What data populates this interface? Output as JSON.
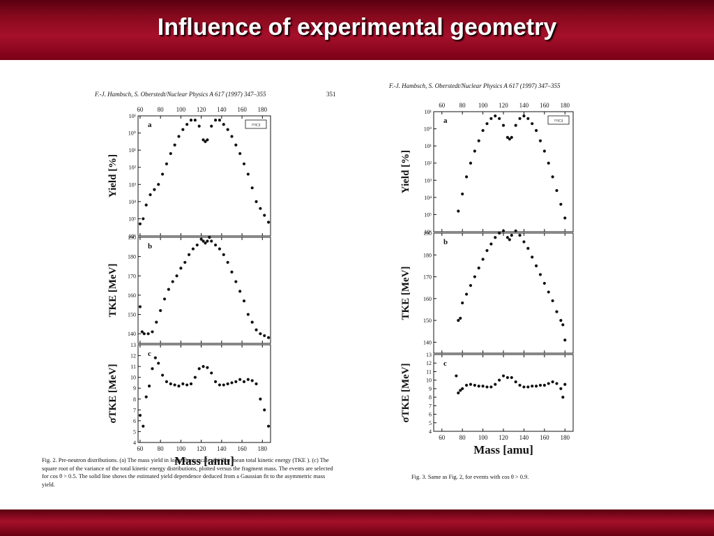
{
  "slide": {
    "title": "Influence of experimental geometry"
  },
  "figures": [
    {
      "header": "F.-J. Hambsch, S. Oberstedt/Nuclear Physics A 617 (1997) 347–355",
      "page": "351",
      "legend": "²⁵²Cf",
      "panel_labels": [
        "a",
        "b",
        "c"
      ],
      "ylabels": [
        "Yield [%]",
        "TKE [MeV]",
        "σTKE [MeV]"
      ],
      "xlabel": "Mass [amu]",
      "caption": "Fig. 2. Pre-neutron distributions. (a) The mass yield in logarithmic scale. (b) The mean total kinetic energy (TKE ). (c) The square root of the variance of the total kinetic energy distributions, plotted versus the fragment mass. The events are selected for cos θ > 0.5. The solid line shows the estimated yield dependence deduced from a Gaussian fit to the asymmetric mass yield."
    },
    {
      "header": "F.-J. Hambsch, S. Oberstedt/Nuclear Physics A 617 (1997) 347–355",
      "legend": "²⁵²Cf",
      "panel_labels": [
        "a",
        "b",
        "c"
      ],
      "ylabels": [
        "Yield [%]",
        "TKE [MeV]",
        "σTKE [MeV]"
      ],
      "xlabel": "Mass [amu]",
      "caption": "Fig. 3. Same as Fig. 2, for events with cos θ > 0.9."
    }
  ],
  "chart_data": [
    {
      "type": "scatter",
      "title": "Fig. 2",
      "xlabel": "Mass [amu]",
      "xlim": [
        58,
        188
      ],
      "xticks": [
        60,
        80,
        100,
        120,
        140,
        160,
        180
      ],
      "panels": [
        {
          "name": "a",
          "ylabel": "Yield [%]",
          "yscale": "log",
          "ylim": [
            -6,
            1
          ],
          "yticks": [
            "10⁶",
            "10⁵",
            "10⁴",
            "10³",
            "10²",
            "10¹",
            "10⁰",
            "10¹"
          ],
          "x": [
            60,
            63,
            66,
            70,
            74,
            78,
            82,
            86,
            90,
            94,
            98,
            102,
            106,
            110,
            114,
            118,
            122,
            124,
            126,
            130,
            134,
            138,
            142,
            146,
            150,
            154,
            158,
            162,
            166,
            170,
            174,
            178,
            182,
            186
          ],
          "y": [
            -5.3,
            -5.0,
            -4.2,
            -3.6,
            -3.3,
            -3.0,
            -2.4,
            -1.8,
            -1.2,
            -0.7,
            -0.2,
            0.2,
            0.5,
            0.75,
            0.75,
            0.4,
            -0.4,
            -0.5,
            -0.4,
            0.4,
            0.75,
            0.75,
            0.5,
            0.2,
            -0.2,
            -0.7,
            -1.2,
            -1.8,
            -2.4,
            -3.2,
            -4.0,
            -4.4,
            -4.8,
            -5.2
          ]
        },
        {
          "name": "b",
          "ylabel": "TKE [MeV]",
          "ylim": [
            135,
            190
          ],
          "yticks": [
            140,
            150,
            160,
            170,
            180,
            190
          ],
          "x": [
            60,
            62,
            64,
            68,
            72,
            76,
            80,
            84,
            88,
            92,
            96,
            100,
            104,
            108,
            112,
            116,
            120,
            122,
            124,
            126,
            128,
            130,
            134,
            138,
            142,
            146,
            150,
            154,
            158,
            162,
            166,
            170,
            174,
            178,
            182,
            186
          ],
          "y": [
            154,
            141,
            140,
            140,
            141,
            146,
            152,
            158,
            163,
            167,
            170,
            174,
            177,
            181,
            184,
            186,
            189,
            188,
            187,
            188,
            190,
            188,
            186,
            184,
            181,
            177,
            172,
            167,
            162,
            157,
            150,
            146,
            142,
            140,
            139,
            138
          ]
        },
        {
          "name": "c",
          "ylabel": "σTKE [MeV]",
          "ylim": [
            4,
            13
          ],
          "yticks": [
            4,
            5,
            6,
            7,
            8,
            9,
            10,
            11,
            12,
            13
          ],
          "x": [
            60,
            63,
            66,
            69,
            72,
            75,
            78,
            82,
            86,
            90,
            94,
            98,
            102,
            106,
            110,
            114,
            118,
            122,
            126,
            130,
            134,
            138,
            142,
            146,
            150,
            154,
            158,
            162,
            166,
            170,
            174,
            178,
            182,
            186
          ],
          "y": [
            6.5,
            5.5,
            8.2,
            9.2,
            10.8,
            11.8,
            11.3,
            10.2,
            9.6,
            9.4,
            9.3,
            9.2,
            9.4,
            9.3,
            9.4,
            10.0,
            10.8,
            11.0,
            10.9,
            10.4,
            9.6,
            9.3,
            9.3,
            9.4,
            9.5,
            9.6,
            9.8,
            9.6,
            9.8,
            9.7,
            9.4,
            8.0,
            7.0,
            5.5
          ]
        }
      ]
    },
    {
      "type": "scatter",
      "title": "Fig. 3",
      "xlabel": "Mass [amu]",
      "xlim": [
        52,
        188
      ],
      "xticks": [
        60,
        80,
        100,
        120,
        140,
        160,
        180
      ],
      "panels": [
        {
          "name": "a",
          "ylabel": "Yield [%]",
          "yscale": "log",
          "ylim": [
            -6,
            1
          ],
          "yticks": [
            "10⁶",
            "10⁵",
            "10⁴",
            "10³",
            "10²",
            "10¹",
            "10⁰",
            "10¹"
          ],
          "x": [
            76,
            80,
            84,
            88,
            92,
            96,
            100,
            104,
            108,
            112,
            116,
            120,
            124,
            126,
            128,
            132,
            136,
            140,
            144,
            148,
            152,
            156,
            160,
            164,
            168,
            172,
            176,
            180
          ],
          "y": [
            -4.8,
            -3.8,
            -2.8,
            -2.0,
            -1.3,
            -0.7,
            -0.1,
            0.3,
            0.6,
            0.75,
            0.6,
            0.2,
            -0.5,
            -0.6,
            -0.5,
            0.2,
            0.6,
            0.75,
            0.6,
            0.3,
            -0.1,
            -0.7,
            -1.3,
            -2.0,
            -2.8,
            -3.6,
            -4.4,
            -5.2
          ]
        },
        {
          "name": "b",
          "ylabel": "TKE [MeV]",
          "ylim": [
            135,
            190
          ],
          "yticks": [
            140,
            150,
            160,
            170,
            180,
            190
          ],
          "x": [
            76,
            78,
            80,
            84,
            88,
            92,
            96,
            100,
            104,
            108,
            112,
            116,
            120,
            124,
            126,
            128,
            132,
            136,
            140,
            144,
            148,
            152,
            156,
            160,
            164,
            168,
            172,
            176,
            178,
            180
          ],
          "y": [
            150,
            151,
            158,
            162,
            166,
            170,
            174,
            178,
            182,
            185,
            188,
            190,
            191,
            188,
            187,
            189,
            191,
            189,
            186,
            183,
            179,
            175,
            171,
            167,
            163,
            159,
            154,
            150,
            148,
            141
          ]
        },
        {
          "name": "c",
          "ylabel": "σTKE [MeV]",
          "ylim": [
            4,
            13
          ],
          "yticks": [
            4,
            5,
            6,
            7,
            8,
            9,
            10,
            11,
            12,
            13
          ],
          "x": [
            74,
            76,
            78,
            80,
            84,
            88,
            92,
            96,
            100,
            104,
            108,
            112,
            116,
            120,
            124,
            128,
            132,
            136,
            140,
            144,
            148,
            152,
            156,
            160,
            164,
            168,
            172,
            176,
            178,
            180
          ],
          "y": [
            10.5,
            8.5,
            8.8,
            9.0,
            9.4,
            9.5,
            9.4,
            9.3,
            9.3,
            9.2,
            9.2,
            9.5,
            10.0,
            10.5,
            10.3,
            10.3,
            9.8,
            9.4,
            9.2,
            9.2,
            9.3,
            9.3,
            9.4,
            9.4,
            9.6,
            9.8,
            9.6,
            9.0,
            8.0,
            9.5
          ]
        }
      ]
    }
  ]
}
